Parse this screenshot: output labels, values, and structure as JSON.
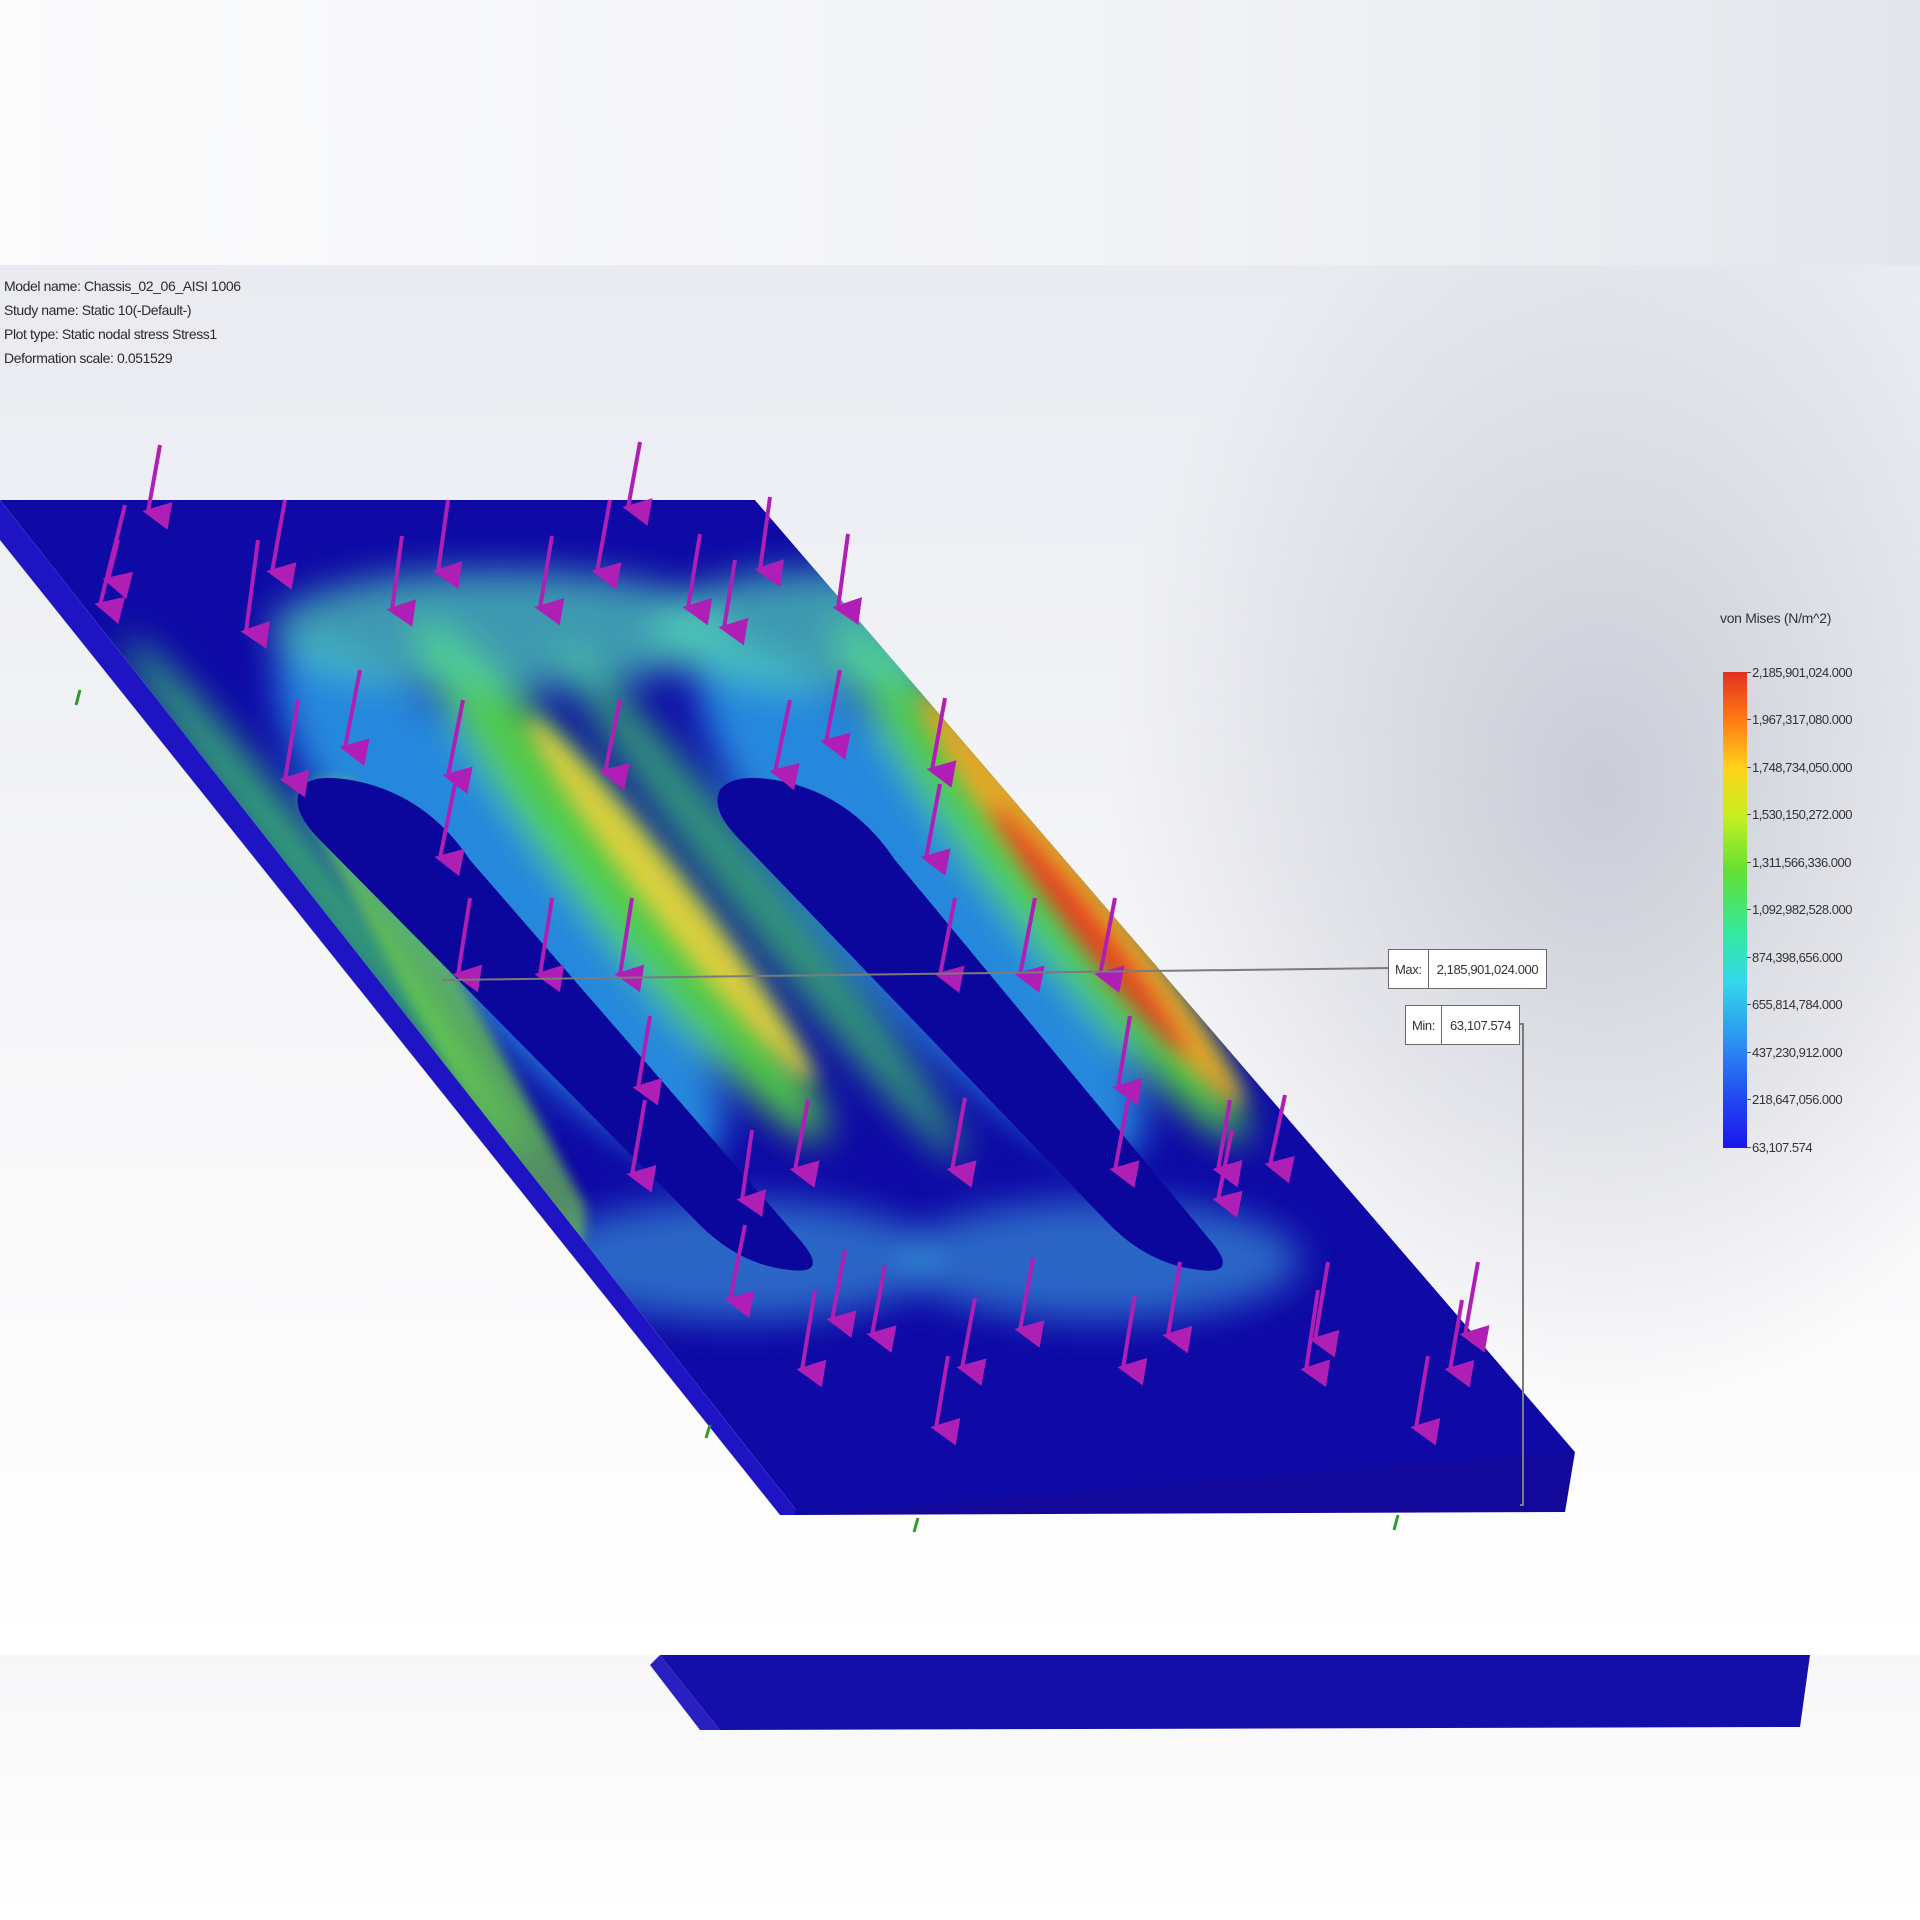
{
  "info": {
    "model_name": "Model name: Chassis_02_06_AISI 1006",
    "study_name": "Study name: Static 10(-Default-)",
    "plot_type": "Plot type: Static nodal stress Stress1",
    "deformation_scale": "Deformation scale: 0.051529"
  },
  "legend": {
    "title": "von Mises (N/m^2)",
    "ticks": [
      "2,185,901,024.000",
      "1,967,317,080.000",
      "1,748,734,050.000",
      "1,530,150,272.000",
      "1,311,566,336.000",
      "1,092,982,528.000",
      "874,398,656.000",
      "655,814,784.000",
      "437,230,912.000",
      "218,647,056.000",
      "63,107.574"
    ]
  },
  "probes": {
    "max_label": "Max:",
    "max_value": "2,185,901,024.000",
    "min_label": "Min:",
    "min_value": "63,107.574"
  },
  "colors": {
    "plate_base": "#0f0aa6",
    "plate_side": "#1a12b8",
    "arrow": "#b01fb5",
    "max_stress": "#e1311f",
    "min_stress": "#1a16ec"
  }
}
